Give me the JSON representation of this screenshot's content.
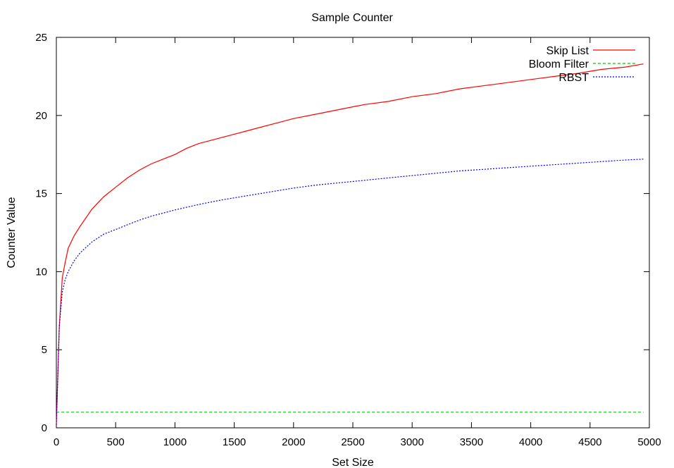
{
  "chart_data": {
    "type": "line",
    "title": "Sample Counter",
    "xlabel": "Set Size",
    "ylabel": "Counter Value",
    "xlim": [
      0,
      5000
    ],
    "ylim": [
      0,
      25
    ],
    "xticks": [
      0,
      500,
      1000,
      1500,
      2000,
      2500,
      3000,
      3500,
      4000,
      4500,
      5000
    ],
    "yticks": [
      0,
      5,
      10,
      15,
      20,
      25
    ],
    "grid": false,
    "legend_position": "top-right",
    "series": [
      {
        "name": "Skip List",
        "color": "#ff0000",
        "dash": "solid",
        "x": [
          0,
          25,
          50,
          75,
          100,
          150,
          200,
          300,
          400,
          500,
          600,
          700,
          800,
          900,
          1000,
          1100,
          1200,
          1300,
          1400,
          1500,
          1600,
          1700,
          1800,
          1900,
          2000,
          2200,
          2400,
          2600,
          2800,
          3000,
          3200,
          3400,
          3600,
          3800,
          4000,
          4200,
          4400,
          4600,
          4800,
          4950
        ],
        "y": [
          0.2,
          6.5,
          9.6,
          10.6,
          11.5,
          12.3,
          12.9,
          14.0,
          14.8,
          15.4,
          16.0,
          16.5,
          16.9,
          17.2,
          17.5,
          17.9,
          18.2,
          18.4,
          18.6,
          18.8,
          19.0,
          19.2,
          19.4,
          19.6,
          19.8,
          20.1,
          20.4,
          20.7,
          20.9,
          21.2,
          21.4,
          21.7,
          21.9,
          22.1,
          22.3,
          22.5,
          22.7,
          22.95,
          23.1,
          23.3
        ]
      },
      {
        "name": "Bloom Filter",
        "color": "#00cc00",
        "dash": "dashed",
        "x": [
          0,
          4950
        ],
        "y": [
          1,
          1
        ]
      },
      {
        "name": "RBST",
        "color": "#0000ff",
        "dash": "dotted",
        "x": [
          0,
          25,
          50,
          75,
          100,
          150,
          200,
          300,
          400,
          500,
          600,
          700,
          800,
          900,
          1000,
          1200,
          1400,
          1600,
          1800,
          2000,
          2200,
          2400,
          2600,
          2800,
          3000,
          3200,
          3400,
          3600,
          3800,
          4000,
          4200,
          4400,
          4600,
          4800,
          4950
        ],
        "y": [
          0.2,
          6.5,
          8.7,
          9.5,
          10.0,
          10.7,
          11.2,
          11.9,
          12.4,
          12.7,
          13.0,
          13.3,
          13.55,
          13.75,
          13.95,
          14.3,
          14.6,
          14.85,
          15.1,
          15.35,
          15.55,
          15.7,
          15.85,
          16.0,
          16.15,
          16.3,
          16.45,
          16.55,
          16.65,
          16.75,
          16.85,
          16.95,
          17.05,
          17.15,
          17.2
        ]
      }
    ]
  }
}
